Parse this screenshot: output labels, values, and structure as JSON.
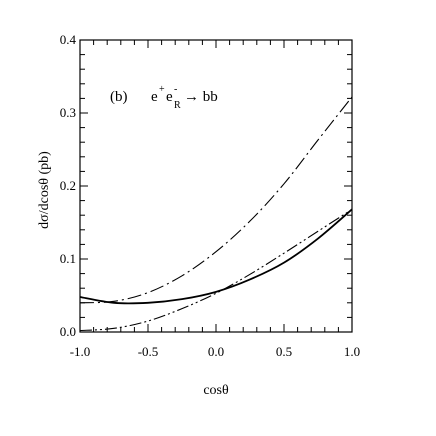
{
  "chart_data": {
    "type": "line",
    "title": "",
    "xlabel": "cosθ",
    "ylabel": "dσ/dcosθ (pb)",
    "xlim": [
      -1.0,
      1.0
    ],
    "ylim": [
      0.0,
      0.4
    ],
    "xticks": [
      -1.0,
      -0.5,
      0.0,
      0.5,
      1.0
    ],
    "xtick_labels": [
      "-1.0",
      "-0.5",
      "0.0",
      "0.5",
      "1.0"
    ],
    "yticks": [
      0.0,
      0.1,
      0.2,
      0.3,
      0.4
    ],
    "ytick_labels": [
      "0.0",
      "0.1",
      "0.2",
      "0.3",
      "0.4"
    ],
    "grid": false,
    "annotation": {
      "panel": "(b)",
      "process_prefix": "e",
      "sup1": "+",
      "mid": "e",
      "sup2": "-",
      "sub": "R",
      "process_suffix": "→ bb"
    },
    "series": [
      {
        "style": "solid",
        "x": [
          -1.0,
          -0.75,
          -0.5,
          -0.25,
          0.0,
          0.25,
          0.5,
          0.75,
          1.0
        ],
        "y": [
          0.048,
          0.04,
          0.04,
          0.045,
          0.055,
          0.072,
          0.095,
          0.128,
          0.168
        ]
      },
      {
        "style": "dash-dot",
        "x": [
          -1.0,
          -0.75,
          -0.5,
          -0.25,
          0.0,
          0.25,
          0.5,
          0.75,
          1.0
        ],
        "y": [
          0.04,
          0.042,
          0.054,
          0.077,
          0.11,
          0.152,
          0.203,
          0.263,
          0.322
        ]
      },
      {
        "style": "dash-dot-dot",
        "x": [
          -1.0,
          -0.75,
          -0.5,
          -0.25,
          0.0,
          0.25,
          0.5,
          0.75,
          1.0
        ],
        "y": [
          0.002,
          0.005,
          0.015,
          0.032,
          0.053,
          0.079,
          0.108,
          0.138,
          0.168
        ]
      }
    ]
  }
}
